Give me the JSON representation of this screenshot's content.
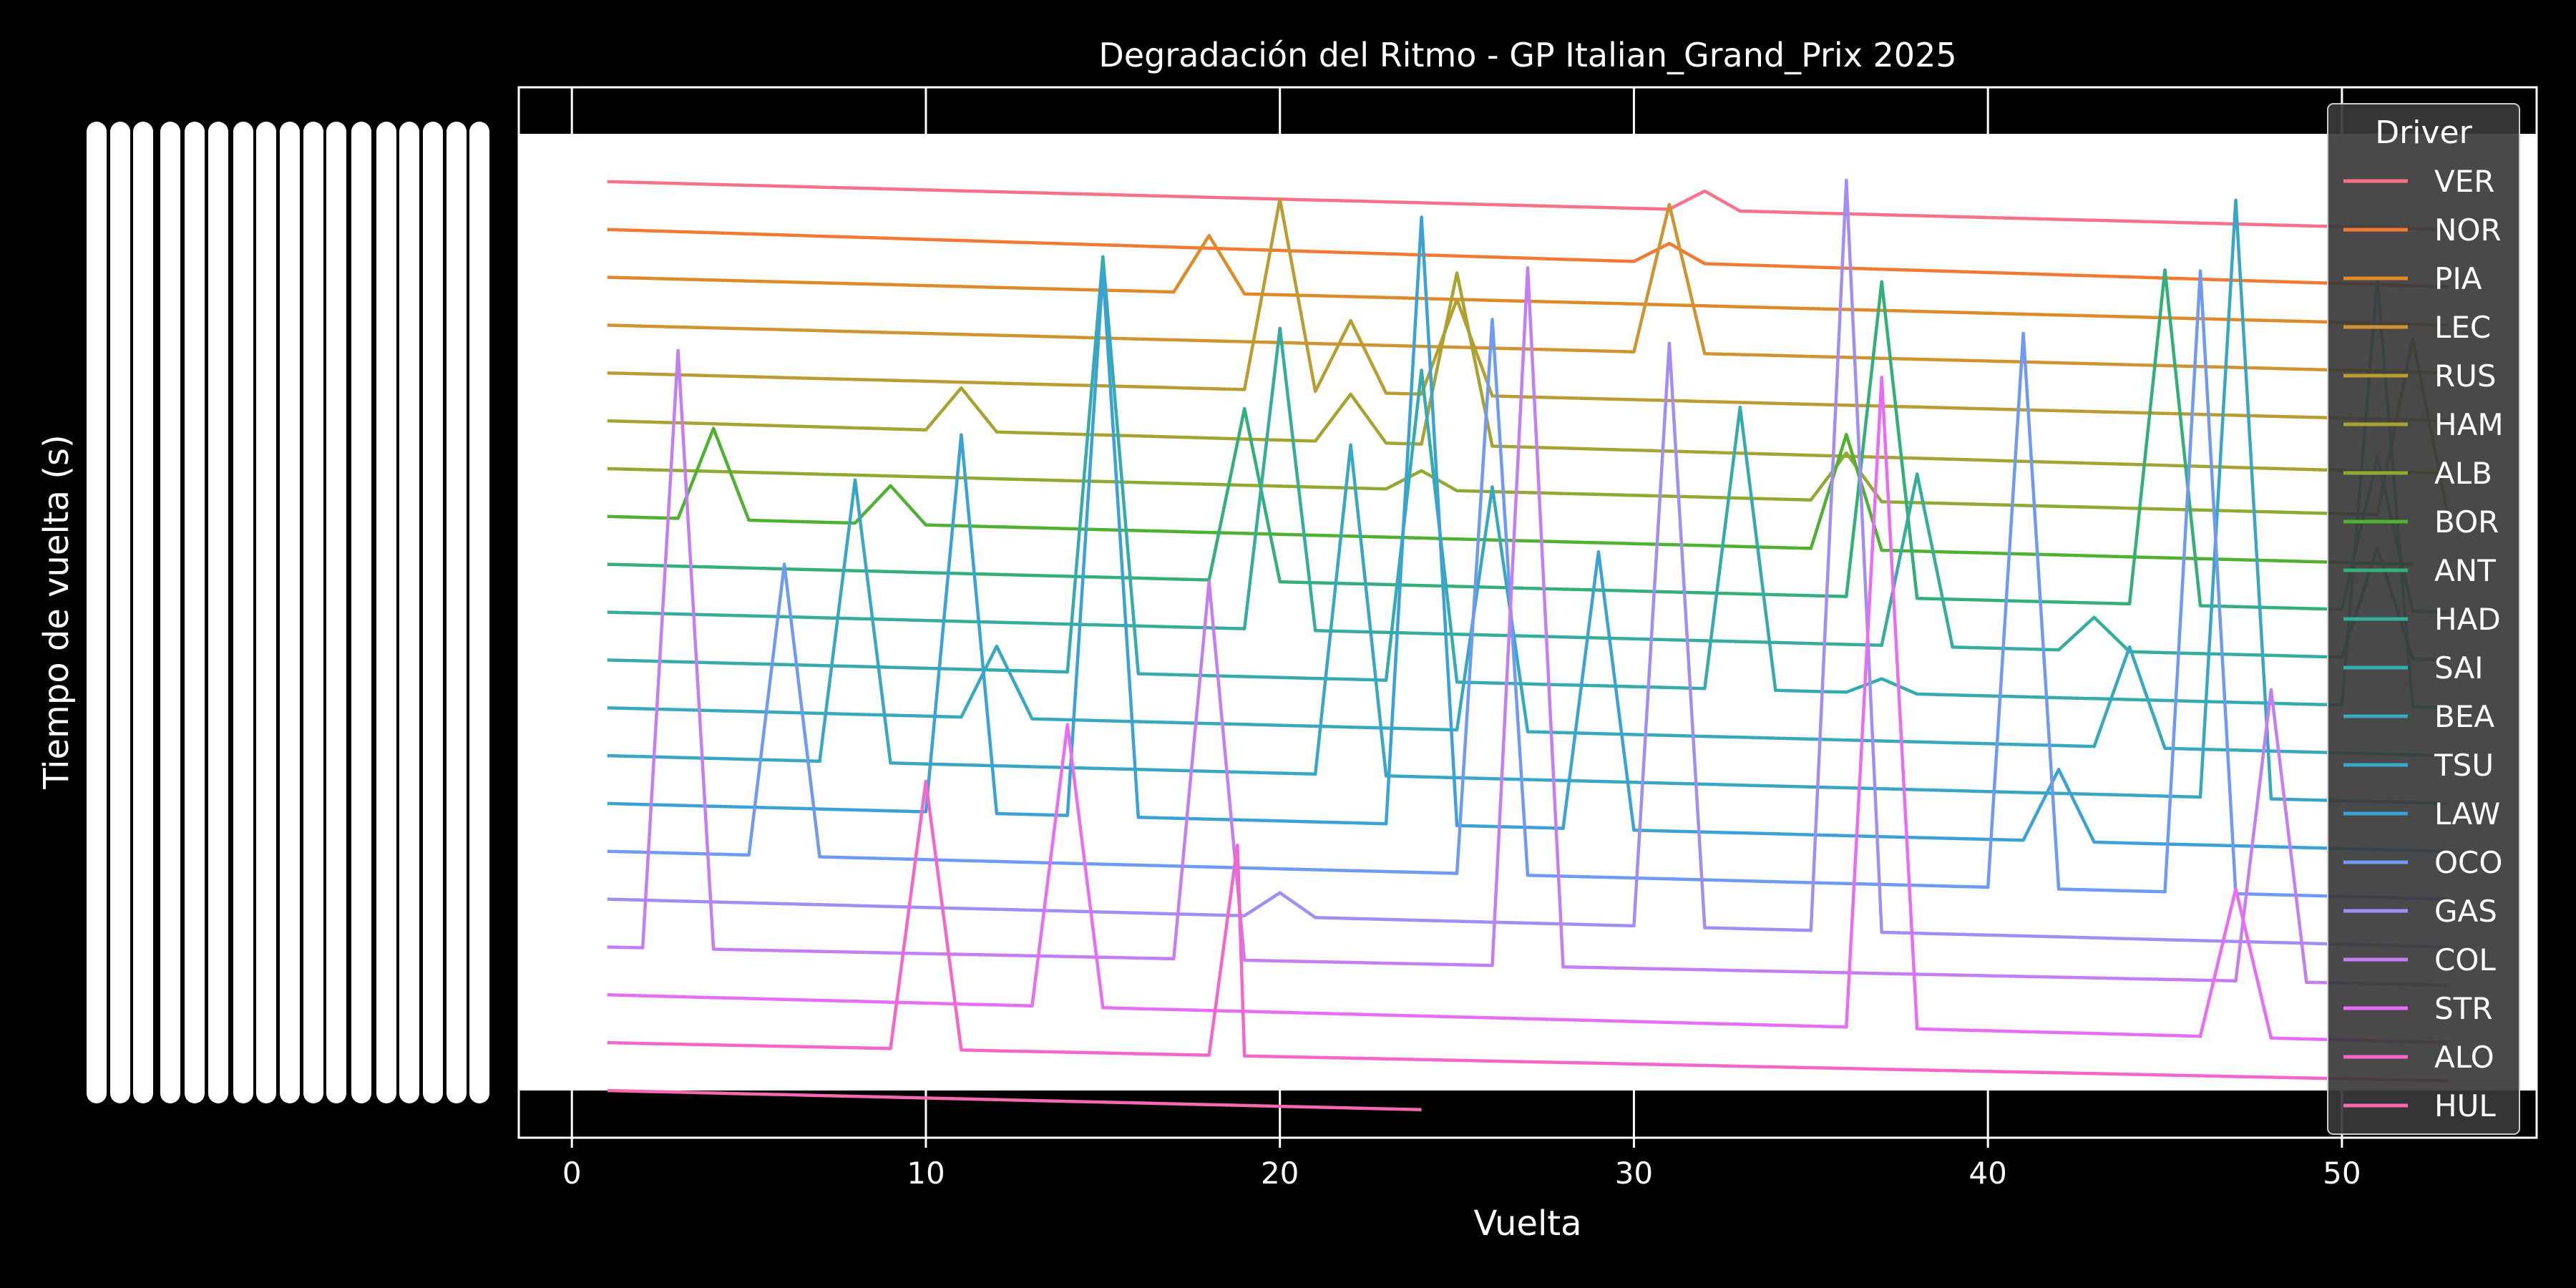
{
  "chart_data": {
    "type": "line",
    "title": "Degradación del Ritmo - GP Italian_Grand_Prix 2025",
    "xlabel": "Vuelta",
    "ylabel": "Tiempo de vuelta (s)",
    "x_ticks": [
      0,
      10,
      20,
      30,
      40,
      50
    ],
    "xlim": [
      -1.5,
      55.5
    ],
    "y_axis_note": "y tick labels rendered as overlapping illegible timedelta strings",
    "y_rank_scale": [
      -1.0,
      19.0
    ],
    "grid": true,
    "legend": {
      "title": "Driver",
      "placement": "right"
    },
    "plot_background": "#ffffff",
    "figure_background": "#000000",
    "series": [
      {
        "name": "VER",
        "color": "#f77189",
        "rank": 0,
        "laps": 53,
        "end_drop": 1.0,
        "end_lap": 53,
        "spikes": [
          [
            32,
            -0.4
          ]
        ]
      },
      {
        "name": "NOR",
        "color": "#f37932",
        "rank": 1,
        "laps": 53,
        "end_drop": 1.2,
        "end_lap": 53,
        "spikes": [
          [
            31,
            -0.4
          ]
        ]
      },
      {
        "name": "PIA",
        "color": "#e08929",
        "rank": 2,
        "laps": 53,
        "end_drop": 1.0,
        "end_lap": 53,
        "spikes": [
          [
            18,
            -1.2
          ]
        ]
      },
      {
        "name": "LEC",
        "color": "#cf9430",
        "rank": 3,
        "laps": 53,
        "end_drop": 1.0,
        "end_lap": 53,
        "spikes": [
          [
            31,
            -3.1
          ]
        ]
      },
      {
        "name": "RUS",
        "color": "#bb9c31",
        "rank": 4,
        "laps": 53,
        "end_drop": 1.0,
        "end_lap": 53,
        "spikes": [
          [
            20,
            -4.0
          ],
          [
            22,
            -1.5
          ],
          [
            25,
            -2.0
          ]
        ]
      },
      {
        "name": "HAM",
        "color": "#a6a330",
        "rank": 5,
        "laps": 53,
        "end_drop": 1.1,
        "end_lap": 53,
        "spikes": [
          [
            11,
            -0.9
          ],
          [
            22,
            -1.0
          ],
          [
            25,
            -3.6
          ]
        ]
      },
      {
        "name": "ALB",
        "color": "#8eaa31",
        "rank": 6,
        "laps": 53,
        "end_drop": 1.0,
        "end_lap": 53,
        "spikes": [
          [
            24,
            -0.4
          ],
          [
            36,
            -1.0
          ],
          [
            52,
            -3.7
          ]
        ]
      },
      {
        "name": "BOR",
        "color": "#50b131",
        "rank": 7,
        "laps": 52,
        "end_drop": 1.0,
        "end_lap": 52,
        "spikes": [
          [
            4,
            -1.9
          ],
          [
            9,
            -0.8
          ],
          [
            36,
            -2.4
          ]
        ]
      },
      {
        "name": "ANT",
        "color": "#33b07a",
        "rank": 8,
        "laps": 53,
        "end_drop": 1.0,
        "end_lap": 53,
        "spikes": [
          [
            19,
            -3.6
          ],
          [
            37,
            -6.6
          ],
          [
            45,
            -7.0
          ],
          [
            51,
            -3.2
          ]
        ]
      },
      {
        "name": "HAD",
        "color": "#35ad9c",
        "rank": 9,
        "laps": 53,
        "end_drop": 1.0,
        "end_lap": 53,
        "spikes": [
          [
            20,
            -6.3
          ],
          [
            38,
            -3.6
          ],
          [
            43,
            -0.7
          ],
          [
            51,
            -2.3
          ]
        ]
      },
      {
        "name": "SAI",
        "color": "#36abae",
        "rank": 10,
        "laps": 53,
        "end_drop": 1.0,
        "end_lap": 53,
        "spikes": [
          [
            15,
            -8.7
          ],
          [
            24,
            -6.5
          ],
          [
            33,
            -5.9
          ],
          [
            37,
            -0.3
          ],
          [
            51,
            -8.9
          ]
        ]
      },
      {
        "name": "BEA",
        "color": "#37a9bc",
        "rank": 11,
        "laps": 53,
        "end_drop": 1.0,
        "end_lap": 53,
        "spikes": [
          [
            12,
            -1.5
          ],
          [
            26,
            -5.1
          ],
          [
            44,
            -2.1
          ]
        ]
      },
      {
        "name": "TSU",
        "color": "#38a7c6",
        "rank": 12,
        "laps": 53,
        "end_drop": 1.0,
        "end_lap": 53,
        "spikes": [
          [
            8,
            -5.9
          ],
          [
            22,
            -6.9
          ],
          [
            47,
            -12.5
          ]
        ]
      },
      {
        "name": "LAW",
        "color": "#3aa2d6",
        "rank": 13,
        "laps": 53,
        "end_drop": 1.0,
        "end_lap": 53,
        "spikes": [
          [
            11,
            -7.9
          ],
          [
            15,
            -11.4
          ],
          [
            24,
            -12.7
          ],
          [
            29,
            -5.8
          ],
          [
            42,
            -1.5
          ]
        ]
      },
      {
        "name": "OCO",
        "color": "#6e9af4",
        "rank": 14,
        "laps": 53,
        "end_drop": 1.0,
        "end_lap": 53,
        "spikes": [
          [
            6,
            -6.1
          ],
          [
            26,
            -11.6
          ],
          [
            41,
            -11.6
          ],
          [
            46,
            -13.0
          ]
        ]
      },
      {
        "name": "GAS",
        "color": "#a38cf4",
        "rank": 15,
        "laps": 53,
        "end_drop": 1.0,
        "end_lap": 53,
        "spikes": [
          [
            20,
            -0.5
          ],
          [
            31,
            -12.2
          ],
          [
            36,
            -15.7
          ]
        ]
      },
      {
        "name": "COL",
        "color": "#c57df4",
        "rank": 16,
        "laps": 53,
        "end_drop": 0.8,
        "end_lap": 53,
        "spikes": [
          [
            3,
            -12.5
          ],
          [
            18,
            -7.9
          ],
          [
            27,
            -14.6
          ],
          [
            48,
            -6.1
          ]
        ]
      },
      {
        "name": "STR",
        "color": "#e86cf4",
        "rank": 17,
        "laps": 53,
        "end_drop": 1.0,
        "end_lap": 53,
        "spikes": [
          [
            14,
            -5.9
          ],
          [
            37,
            -13.6
          ],
          [
            47,
            -3.1
          ]
        ]
      },
      {
        "name": "ALO",
        "color": "#f565cc",
        "rank": 18,
        "laps": 53,
        "end_drop": 0.8,
        "end_lap": 53,
        "spikes": [
          [
            10,
            -5.6
          ],
          [
            18.8,
            -4.4
          ]
        ]
      },
      {
        "name": "HUL",
        "color": "#f668b0",
        "rank": 19,
        "laps": 24,
        "end_drop": 0.4,
        "end_lap": 24,
        "spikes": []
      }
    ]
  }
}
